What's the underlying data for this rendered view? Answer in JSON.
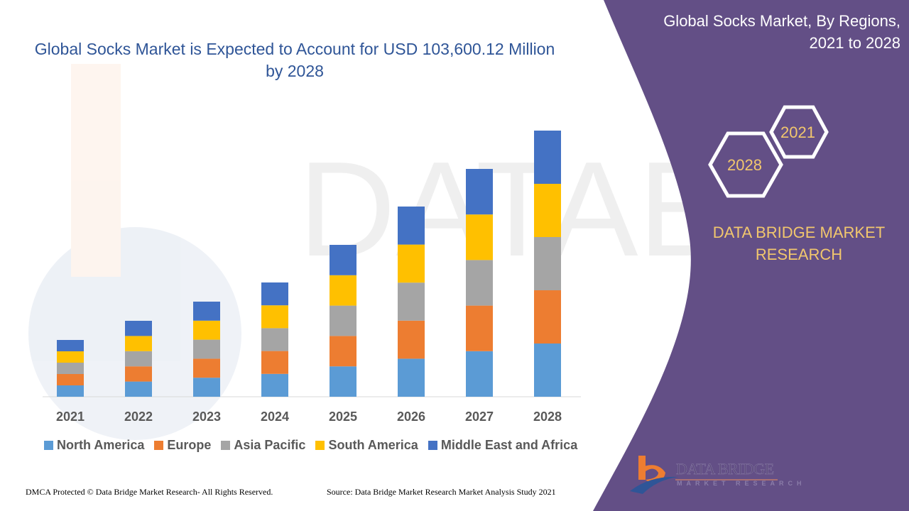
{
  "header": {
    "title": "Global Socks Market is Expected to Account for USD 103,600.12 Million by 2028"
  },
  "side_panel": {
    "title": "Global Socks Market, By Regions, 2021 to 2028",
    "hex_top": "2021",
    "hex_bottom": "2028",
    "brand": "DATA BRIDGE MARKET RESEARCH",
    "logo_text": "DATA BRIDGE",
    "logo_sub": "MARKET RESEARCH",
    "color": "#634f86"
  },
  "footer": {
    "left": "DMCA Protected © Data Bridge Market Research- All Rights Reserved.",
    "right": "Source: Data Bridge Market Research Market Analysis Study 2021"
  },
  "chart_data": {
    "type": "bar",
    "stacked": true,
    "title": "Global Socks Market is Expected to Account for USD 103,600.12 Million by 2028",
    "xlabel": "",
    "ylabel": "",
    "y_axis_shown": false,
    "grid": false,
    "legend_position": "bottom",
    "categories": [
      "2021",
      "2022",
      "2023",
      "2024",
      "2025",
      "2026",
      "2027",
      "2028"
    ],
    "series": [
      {
        "name": "North America",
        "color": "#5b9bd5",
        "values": [
          16,
          21.4,
          26.8,
          32.2,
          42.8,
          53.6,
          64.2,
          75
        ]
      },
      {
        "name": "Europe",
        "color": "#ed7d31",
        "values": [
          16,
          21.4,
          26.8,
          32.2,
          42.8,
          53.6,
          64.2,
          75
        ]
      },
      {
        "name": "Asia Pacific",
        "color": "#a5a5a5",
        "values": [
          16,
          21.4,
          26.8,
          32.2,
          42.8,
          53.6,
          64.2,
          75
        ]
      },
      {
        "name": "South America",
        "color": "#ffc000",
        "values": [
          16,
          21.4,
          26.8,
          32.2,
          42.8,
          53.6,
          64.2,
          75
        ]
      },
      {
        "name": "Middle East and Africa",
        "color": "#4472c4",
        "values": [
          16,
          21.4,
          26.8,
          32.2,
          42.8,
          53.6,
          64.2,
          75
        ]
      }
    ]
  }
}
